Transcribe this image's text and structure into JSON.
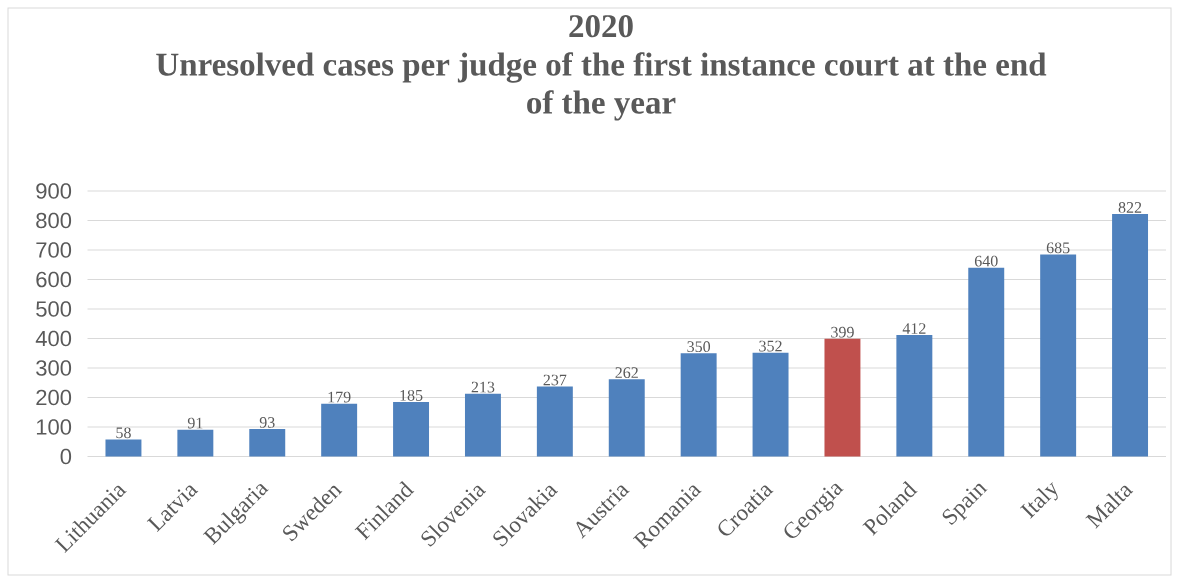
{
  "chart_data": {
    "type": "bar",
    "title": "2020",
    "subtitle": "Unresolved cases per judge of the first instance court at the end of the year",
    "categories": [
      "Lithuania",
      "Latvia",
      "Bulgaria",
      "Sweden",
      "Finland",
      "Slovenia",
      "Slovakia",
      "Austria",
      "Romania",
      "Croatia",
      "Georgia",
      "Poland",
      "Spain",
      "Italy",
      "Malta"
    ],
    "values": [
      58,
      91,
      93,
      179,
      185,
      213,
      237,
      262,
      350,
      352,
      399,
      412,
      640,
      685,
      822
    ],
    "colors": [
      "#4f81bd",
      "#4f81bd",
      "#4f81bd",
      "#4f81bd",
      "#4f81bd",
      "#4f81bd",
      "#4f81bd",
      "#4f81bd",
      "#4f81bd",
      "#4f81bd",
      "#c0504d",
      "#4f81bd",
      "#4f81bd",
      "#4f81bd",
      "#4f81bd"
    ],
    "ylim": [
      0,
      900
    ],
    "yticks": [
      0,
      100,
      200,
      300,
      400,
      500,
      600,
      700,
      800,
      900
    ],
    "grid": "y",
    "data_labels": true
  }
}
